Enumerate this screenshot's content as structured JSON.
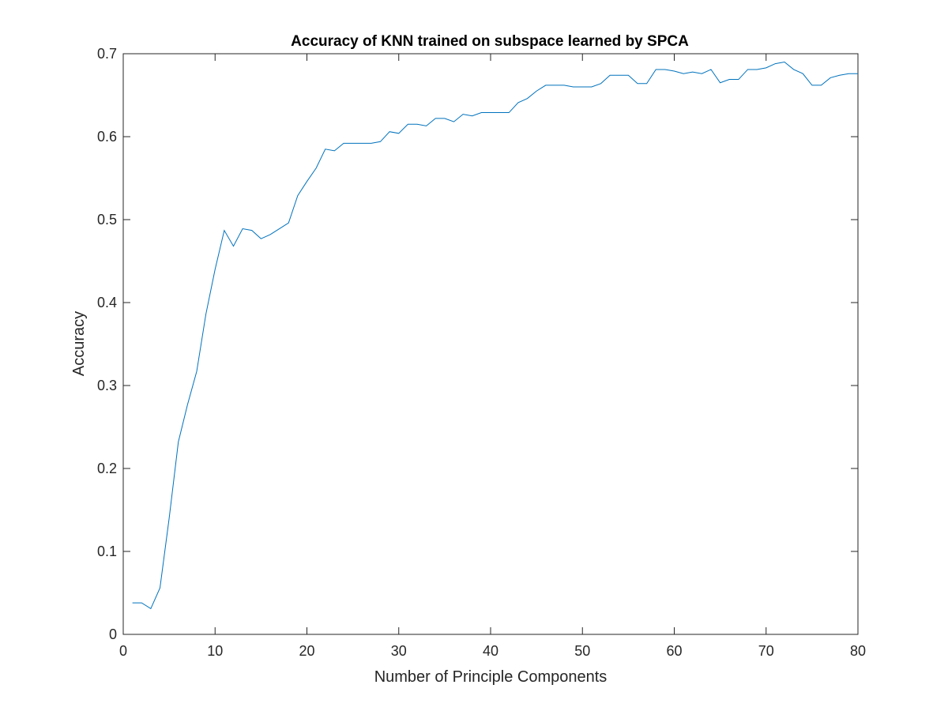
{
  "chart_data": {
    "type": "line",
    "title": "Accuracy of KNN trained on subspace learned by SPCA",
    "xlabel": "Number of Principle Components",
    "ylabel": "Accuracy",
    "xlim": [
      0,
      80
    ],
    "ylim": [
      0,
      0.7
    ],
    "xticks": [
      0,
      10,
      20,
      30,
      40,
      50,
      60,
      70,
      80
    ],
    "xtick_labels": [
      "0",
      "10",
      "20",
      "30",
      "40",
      "50",
      "60",
      "70",
      "80"
    ],
    "yticks": [
      0,
      0.1,
      0.2,
      0.3,
      0.4,
      0.5,
      0.6,
      0.7
    ],
    "ytick_labels": [
      "0",
      "0.1",
      "0.2",
      "0.3",
      "0.4",
      "0.5",
      "0.6",
      "0.7"
    ],
    "grid": false,
    "series": [
      {
        "color": "#0072BD",
        "x": [
          1,
          2,
          3,
          4,
          5,
          6,
          7,
          8,
          9,
          10,
          11,
          12,
          13,
          14,
          15,
          16,
          17,
          18,
          19,
          20,
          21,
          22,
          23,
          24,
          25,
          26,
          27,
          28,
          29,
          30,
          31,
          32,
          33,
          34,
          35,
          36,
          37,
          38,
          39,
          40,
          41,
          42,
          43,
          44,
          45,
          46,
          47,
          48,
          49,
          50,
          51,
          52,
          53,
          54,
          55,
          56,
          57,
          58,
          59,
          60,
          61,
          62,
          63,
          64,
          65,
          66,
          67,
          68,
          69,
          70,
          71,
          72,
          73,
          74,
          75,
          76,
          77,
          78,
          79,
          80
        ],
        "y": [
          0.038,
          0.038,
          0.031,
          0.056,
          0.14,
          0.232,
          0.277,
          0.317,
          0.386,
          0.44,
          0.487,
          0.468,
          0.489,
          0.487,
          0.477,
          0.482,
          0.489,
          0.496,
          0.529,
          0.546,
          0.562,
          0.585,
          0.583,
          0.592,
          0.592,
          0.592,
          0.592,
          0.594,
          0.606,
          0.604,
          0.615,
          0.615,
          0.613,
          0.622,
          0.622,
          0.618,
          0.627,
          0.625,
          0.629,
          0.629,
          0.629,
          0.629,
          0.641,
          0.646,
          0.655,
          0.662,
          0.662,
          0.662,
          0.66,
          0.66,
          0.66,
          0.664,
          0.674,
          0.674,
          0.674,
          0.664,
          0.664,
          0.681,
          0.681,
          0.679,
          0.676,
          0.678,
          0.676,
          0.681,
          0.665,
          0.669,
          0.669,
          0.681,
          0.681,
          0.683,
          0.688,
          0.69,
          0.681,
          0.676,
          0.662,
          0.662,
          0.671,
          0.674,
          0.676,
          0.676
        ]
      }
    ]
  }
}
